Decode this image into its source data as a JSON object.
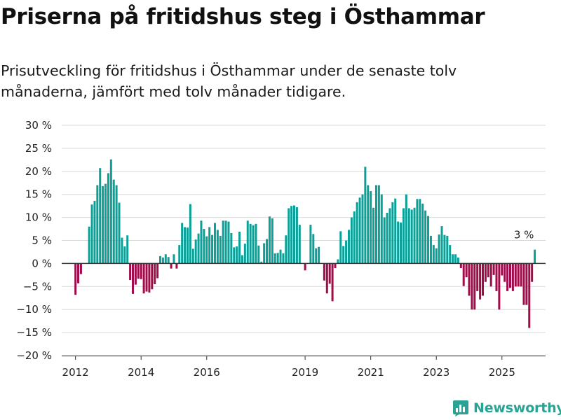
{
  "title": "Priserna på fritidshus steg i Östhammar",
  "subtitle": "Prisutveckling för fritidshus i Östhammar under de senaste tolv månaderna, jämfört med tolv månader tidigare.",
  "brand": "Newsworthy",
  "colors": {
    "positive": "#0aa097",
    "negative": "#a00c4a",
    "grid": "#d9d9d9",
    "axis": "#333333",
    "brand": "#2aa294"
  },
  "chart_data": {
    "type": "bar",
    "unit": "%",
    "ylim": [
      -20,
      30
    ],
    "yticks": [
      30,
      25,
      20,
      15,
      10,
      5,
      0,
      -5,
      -10,
      -15,
      -20
    ],
    "ytick_labels": [
      "30 %",
      "25 %",
      "20 %",
      "15 %",
      "10 %",
      "5 %",
      "0 %",
      "−5 %",
      "−10 %",
      "−15 %",
      "−20 %"
    ],
    "xticks": [
      2012,
      2014,
      2016,
      2019,
      2021,
      2023,
      2025
    ],
    "xlim": [
      2011.58,
      2026.33
    ],
    "grid": true,
    "annotation": {
      "text": "3 %",
      "x": 2025.67
    },
    "start": 2012.0,
    "step": 0.0833333,
    "values": [
      -6.8,
      -4.3,
      -2.3,
      0,
      0,
      8,
      12.8,
      13.6,
      17,
      20.7,
      16.8,
      17.3,
      19.6,
      22.6,
      18.2,
      17,
      13.2,
      5.6,
      3.7,
      6.1,
      -3.6,
      -6.6,
      -4.6,
      -3.3,
      -3.4,
      -6.5,
      -6.1,
      -6.3,
      -5.6,
      -4.5,
      -3.2,
      1.6,
      1.3,
      2,
      1.4,
      -1.1,
      2,
      -1.1,
      4,
      8.8,
      7.9,
      7.8,
      12.9,
      3.2,
      5.2,
      6.5,
      9.3,
      7.5,
      5.9,
      7.9,
      6.2,
      8.8,
      7.3,
      6,
      9.3,
      9.3,
      9.1,
      6.6,
      3.5,
      3.7,
      6.9,
      1.8,
      4.3,
      9.3,
      8.6,
      8.3,
      8.6,
      3.9,
      0.4,
      4.4,
      5.3,
      10.2,
      9.8,
      2.2,
      2.3,
      3,
      2.2,
      6.1,
      12,
      12.5,
      12.6,
      12.2,
      8.4,
      0,
      -1.5,
      0,
      8.4,
      6.4,
      3.3,
      3.6,
      0,
      -3.7,
      -6.5,
      -4.4,
      -8.2,
      -1,
      0.9,
      7,
      3.8,
      5,
      7.3,
      10,
      11.3,
      13.3,
      14.3,
      15,
      21,
      17,
      15.7,
      12.1,
      17,
      17,
      15,
      10,
      11,
      12,
      13.3,
      14.1,
      9.1,
      8.9,
      12,
      15,
      12,
      11.7,
      12.1,
      14,
      14,
      13,
      11.5,
      10.3,
      6,
      4,
      3.3,
      6.3,
      8.1,
      6.2,
      6,
      4,
      2,
      2,
      1.3,
      -1,
      -4.9,
      -3,
      -7,
      -10,
      -10,
      -6,
      -7.8,
      -7,
      -4,
      -3,
      -5,
      -2.5,
      -6,
      -10,
      -2.6,
      -4,
      -6,
      -5.3,
      -6,
      -5,
      -5,
      -5,
      -9,
      -9,
      -14,
      -4,
      3
    ]
  }
}
